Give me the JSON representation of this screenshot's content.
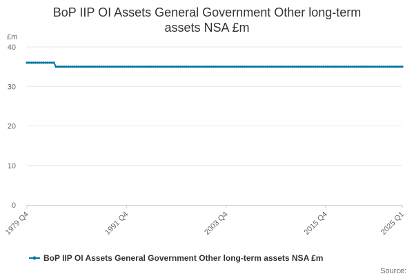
{
  "chart_data": {
    "type": "line",
    "title_lines": [
      "BoP IIP OI Assets General Government Other long-term",
      "assets NSA £m"
    ],
    "ylabel": "£m",
    "ylim": [
      0,
      40
    ],
    "yticks": [
      0,
      10,
      20,
      30,
      40
    ],
    "xtick_labels": [
      "1979 Q4",
      "1991 Q4",
      "2003 Q4",
      "2015 Q4",
      "2025 Q1"
    ],
    "x_start": "1979 Q4",
    "x_end": "2025 Q1",
    "grid": true,
    "legend_position": "bottom",
    "series": [
      {
        "name": "BoP IIP OI Assets General Government Other long-term assets NSA £m",
        "color": "#0075a3",
        "segments": [
          {
            "from": "1979 Q4",
            "to": "1983 Q1",
            "value": 36
          },
          {
            "from": "1983 Q2",
            "to": "2025 Q1",
            "value": 35
          }
        ]
      }
    ],
    "source_label": "Source:"
  }
}
